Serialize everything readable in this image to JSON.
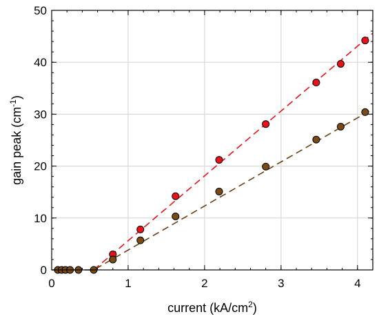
{
  "chart_data": {
    "type": "scatter",
    "title": "",
    "xlabel": {
      "text": "current (kA/cm",
      "sup": "2",
      "suffix": ")"
    },
    "ylabel": {
      "text": "gain peak (cm",
      "sup": "-1",
      "suffix": ")"
    },
    "xlim": [
      0,
      4.2
    ],
    "ylim": [
      0,
      50
    ],
    "xticks": [
      0,
      1,
      2,
      3,
      4
    ],
    "yticks": [
      0,
      10,
      20,
      30,
      40,
      50
    ],
    "grid": true,
    "legend": "none",
    "series": [
      {
        "color": "#e8121b",
        "line_color": "#e8121b",
        "x": [
          0.8,
          1.16,
          1.62,
          2.19,
          2.8,
          3.46,
          3.78,
          4.1
        ],
        "y": [
          3.0,
          7.8,
          14.2,
          21.2,
          28.1,
          36.1,
          39.7,
          44.2
        ],
        "fit": [
          [
            0.55,
            0
          ],
          [
            4.2,
            45.6
          ]
        ]
      },
      {
        "color": "#7a4a14",
        "line_color": "#6b3f10",
        "x": [
          0.08,
          0.13,
          0.18,
          0.24,
          0.35,
          0.55,
          0.8,
          1.16,
          1.62,
          2.19,
          2.8,
          3.46,
          3.78,
          4.1
        ],
        "y": [
          0,
          0,
          0,
          0,
          0,
          0,
          2.0,
          5.7,
          10.3,
          15.1,
          19.9,
          25.1,
          27.6,
          30.4
        ],
        "fit": [
          [
            0.0,
            0
          ],
          [
            0.55,
            0
          ],
          [
            4.2,
            31.0
          ]
        ]
      }
    ]
  }
}
